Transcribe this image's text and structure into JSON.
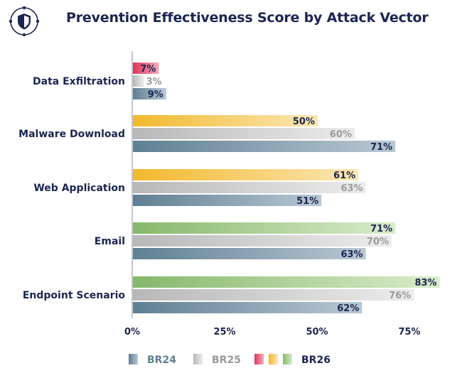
{
  "title": "Prevention Effectiveness Score by Attack Vector",
  "icon": "shield-icon",
  "colors": {
    "navy": "#1b2550",
    "br24": "#5f7f93",
    "br25": "#bdbdbd",
    "br26_red": "#e0345a",
    "br26_yellow": "#f2b92e",
    "br26_green": "#86b86b"
  },
  "chart_data": {
    "type": "bar",
    "orientation": "horizontal",
    "categories": [
      "Data Exfiltration",
      "Malware Download",
      "Web Application",
      "Email",
      "Endpoint Scenario"
    ],
    "series": [
      {
        "name": "BR26",
        "values": [
          7,
          50,
          61,
          71,
          83
        ],
        "colors": [
          "red",
          "yellow",
          "yellow",
          "green",
          "green"
        ]
      },
      {
        "name": "BR25",
        "values": [
          3,
          60,
          63,
          70,
          76
        ]
      },
      {
        "name": "BR24",
        "values": [
          9,
          71,
          51,
          63,
          62
        ]
      }
    ],
    "value_labels": [
      [
        "7%",
        "3%",
        "9%"
      ],
      [
        "50%",
        "60%",
        "71%"
      ],
      [
        "61%",
        "63%",
        "51%"
      ],
      [
        "71%",
        "70%",
        "63%"
      ],
      [
        "83%",
        "76%",
        "62%"
      ]
    ],
    "x_ticks": [
      "0%",
      "25%",
      "50%",
      "75%"
    ],
    "xlim": [
      0,
      83
    ],
    "legend": [
      {
        "label": "BR24",
        "swatches": [
          "br24"
        ]
      },
      {
        "label": "BR25",
        "swatches": [
          "br25"
        ]
      },
      {
        "label": "BR26",
        "swatches": [
          "br26_red",
          "br26_yellow",
          "br26_green"
        ]
      }
    ],
    "legend_position": "bottom"
  }
}
